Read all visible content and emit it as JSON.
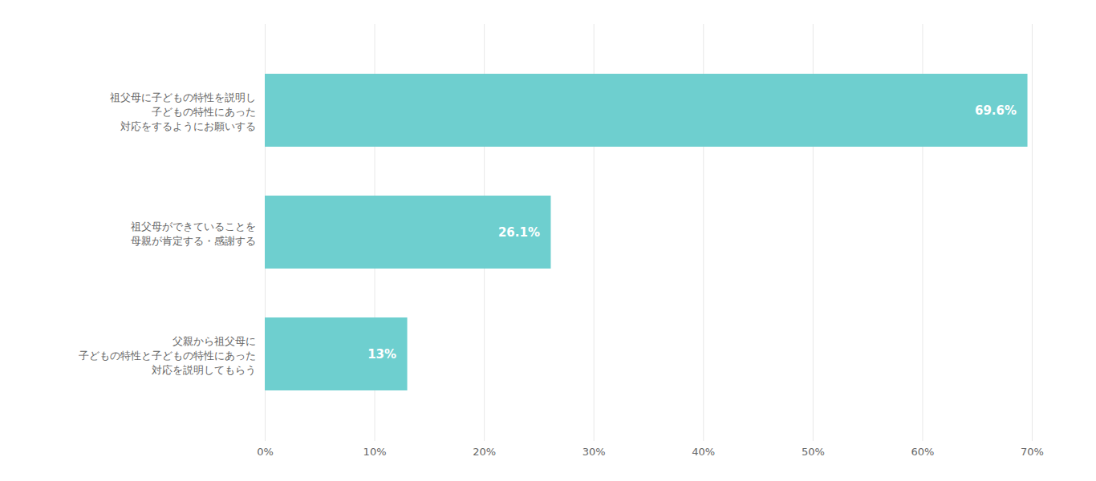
{
  "chart_data": {
    "type": "bar",
    "orientation": "horizontal",
    "categories": [
      "父親から祖父母に\n子どもの特性と子どもの特性にあった\n対応を説明してもらう",
      "祖父母ができていることを\n母親が肯定する・感謝する",
      "祖父母に子どもの特性を説明し\n子どもの特性にあった\n対応をするようにお願いする"
    ],
    "values": [
      13.0,
      26.1,
      69.6
    ],
    "value_labels": [
      "13%",
      "26.1%",
      "69.6%"
    ],
    "data_labels": true,
    "color": "#6ecfcf",
    "xlim": [
      0,
      70
    ],
    "xticks": [
      {
        "value": 0,
        "label": "0%"
      },
      {
        "value": 10,
        "label": "10%"
      },
      {
        "value": 20,
        "label": "20%"
      },
      {
        "value": 30,
        "label": "30%"
      },
      {
        "value": 40,
        "label": "40%"
      },
      {
        "value": 50,
        "label": "50%"
      },
      {
        "value": 60,
        "label": "60%"
      },
      {
        "value": 70,
        "label": "70%"
      }
    ],
    "grid": true
  }
}
